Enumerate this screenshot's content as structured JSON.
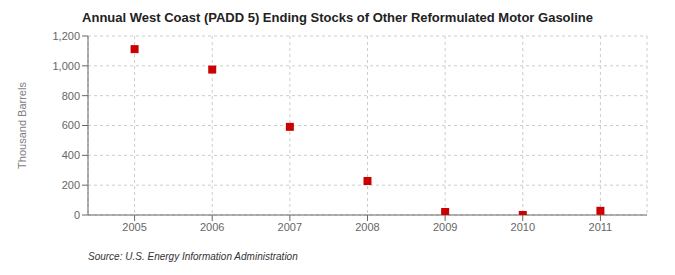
{
  "chart_data": {
    "type": "scatter",
    "title": "Annual West Coast (PADD 5) Ending Stocks of Other Reformulated Motor Gasoline",
    "ylabel": "Thousand Barrels",
    "annotation": "Source: U.S. Energy Information Administration",
    "x": [
      2005,
      2006,
      2007,
      2008,
      2009,
      2010,
      2011
    ],
    "values": [
      1112,
      975,
      591,
      228,
      20,
      0,
      28
    ],
    "color": "#cc0000",
    "marker": "square",
    "xlim": [
      2004.4,
      2011.6
    ],
    "xticks": [
      2005,
      2006,
      2007,
      2008,
      2009,
      2010,
      2011
    ],
    "ylim": [
      0,
      1200
    ],
    "yticks": [
      0,
      200,
      400,
      600,
      800,
      {
        "value": 1000,
        "label": "1,000"
      },
      {
        "value": 1200,
        "label": "1,200"
      }
    ],
    "grid": true
  }
}
